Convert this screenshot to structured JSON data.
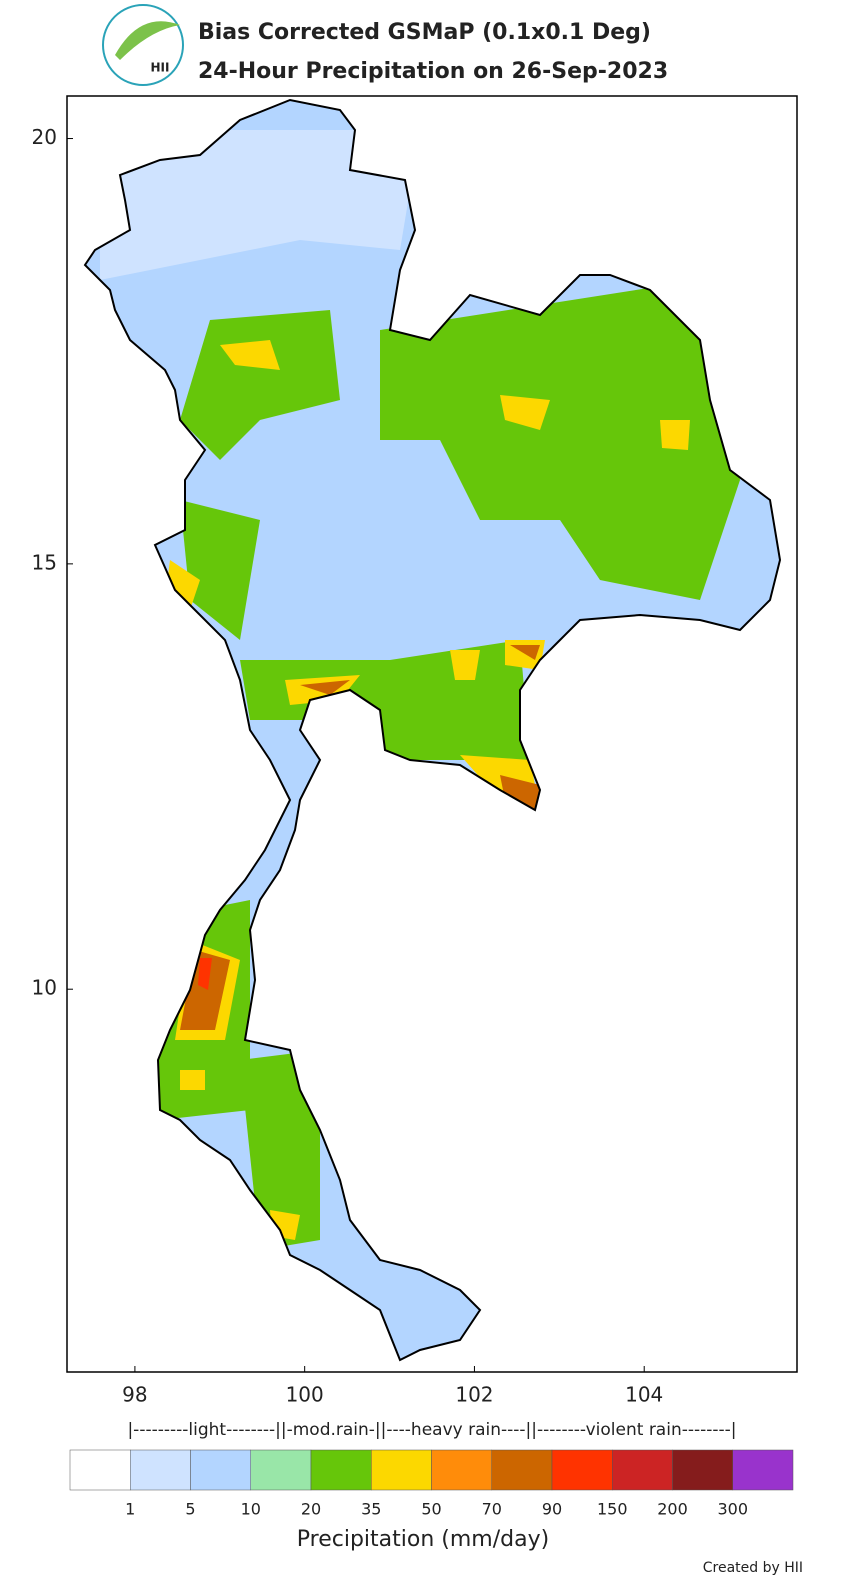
{
  "header": {
    "logo": "HII",
    "title": "Bias Corrected GSMaP (0.1x0.1 Deg)",
    "subtitle": "24-Hour Precipitation on 26-Sep-2023"
  },
  "map": {
    "xlim": [
      97.2,
      105.8
    ],
    "ylim": [
      5.5,
      20.5
    ],
    "xticks": [
      98,
      100,
      102,
      104
    ],
    "yticks": [
      20,
      15,
      10
    ]
  },
  "legend": {
    "band_label": "|---------light--------||-mod.rain-||----heavy rain----||--------violent rain--------|",
    "colors": [
      "#ffffff",
      "#cfe3ff",
      "#b3d5ff",
      "#99e6a8",
      "#66c60a",
      "#fcd800",
      "#ff8c0a",
      "#cc6600",
      "#ff3300",
      "#cc2424",
      "#851c1c",
      "#9933cc"
    ],
    "bounds": [
      1,
      5,
      10,
      20,
      35,
      50,
      70,
      90,
      150,
      200,
      300
    ],
    "label": "Precipitation (mm/day)"
  },
  "credit": "Created by HII"
}
